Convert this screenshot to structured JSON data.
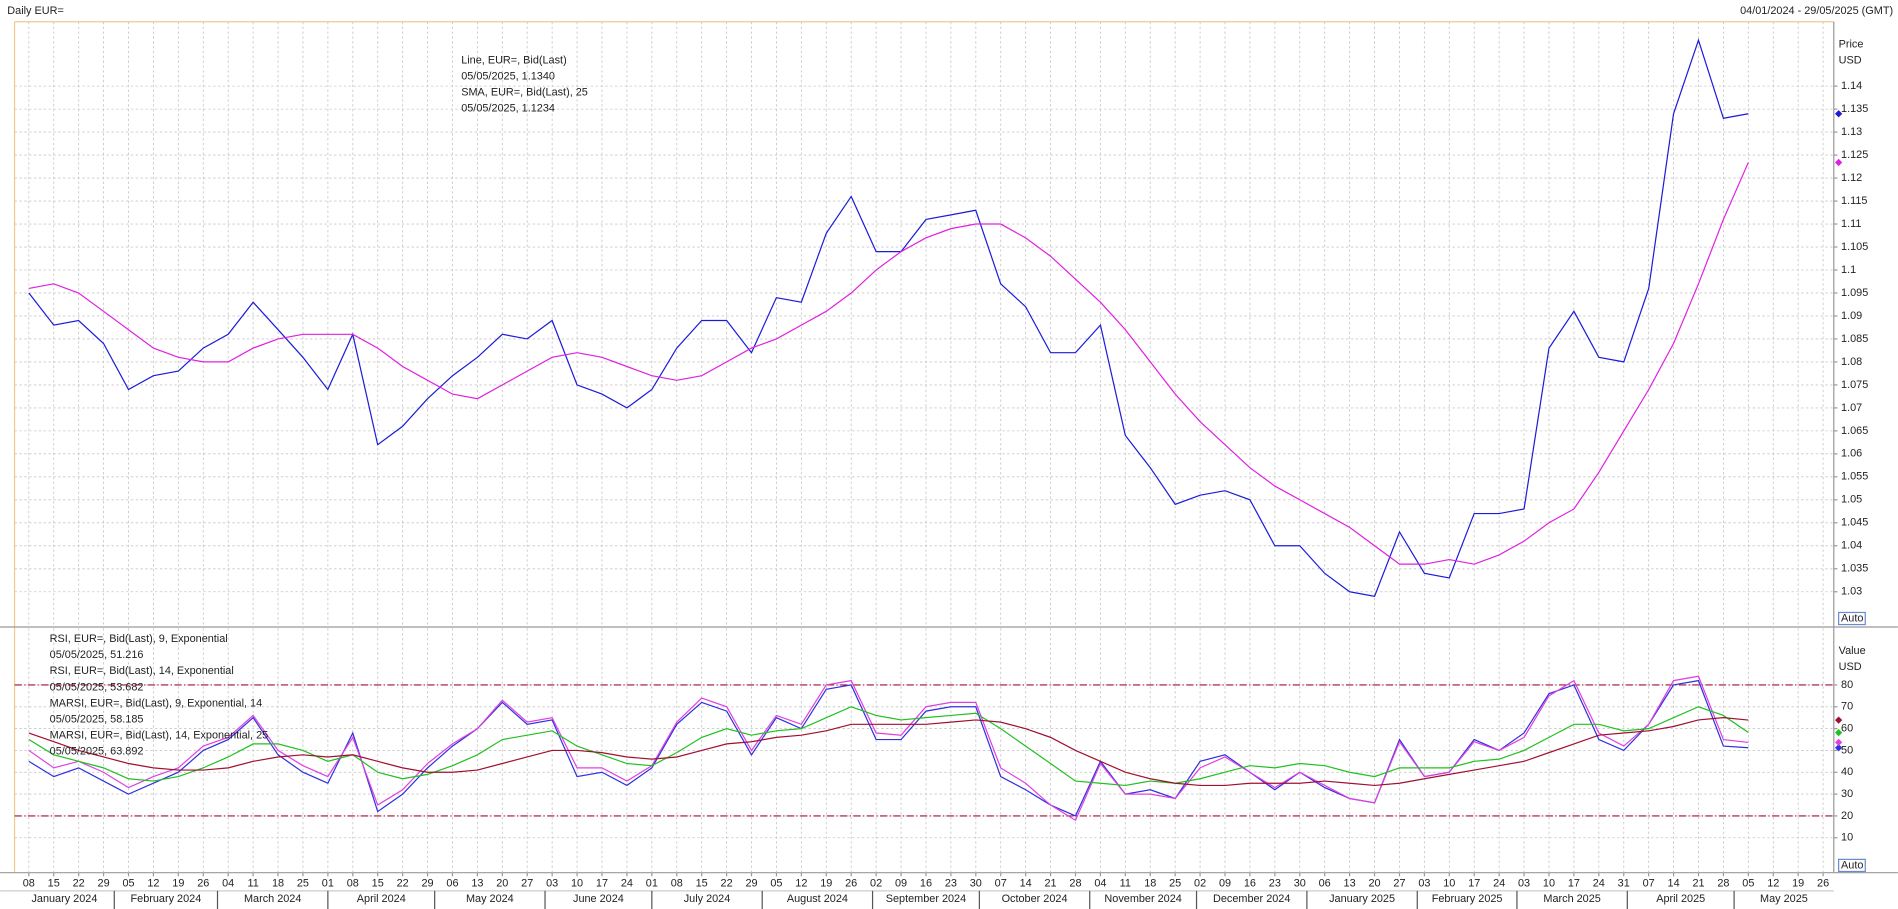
{
  "header": {
    "title": "Daily EUR=",
    "range": "04/01/2024 - 29/05/2025 (GMT)"
  },
  "chart_data": [
    {
      "type": "line",
      "y_label": "Price",
      "y_unit": "USD",
      "auto": "Auto",
      "grid": true,
      "x": [
        "2024-01-08",
        "2024-01-15",
        "2024-01-22",
        "2024-01-29",
        "2024-02-05",
        "2024-02-12",
        "2024-02-19",
        "2024-02-26",
        "2024-03-04",
        "2024-03-11",
        "2024-03-18",
        "2024-03-25",
        "2024-04-01",
        "2024-04-08",
        "2024-04-15",
        "2024-04-22",
        "2024-04-29",
        "2024-05-06",
        "2024-05-13",
        "2024-05-20",
        "2024-05-27",
        "2024-06-03",
        "2024-06-10",
        "2024-06-17",
        "2024-06-24",
        "2024-07-01",
        "2024-07-08",
        "2024-07-15",
        "2024-07-22",
        "2024-07-29",
        "2024-08-05",
        "2024-08-12",
        "2024-08-19",
        "2024-08-26",
        "2024-09-02",
        "2024-09-09",
        "2024-09-16",
        "2024-09-23",
        "2024-09-30",
        "2024-10-07",
        "2024-10-14",
        "2024-10-21",
        "2024-10-28",
        "2024-11-04",
        "2024-11-11",
        "2024-11-18",
        "2024-11-25",
        "2024-12-02",
        "2024-12-09",
        "2024-12-16",
        "2024-12-23",
        "2024-12-30",
        "2025-01-06",
        "2025-01-13",
        "2025-01-20",
        "2025-01-27",
        "2025-02-03",
        "2025-02-10",
        "2025-02-17",
        "2025-02-24",
        "2025-03-03",
        "2025-03-10",
        "2025-03-17",
        "2025-03-24",
        "2025-03-31",
        "2025-04-07",
        "2025-04-14",
        "2025-04-21",
        "2025-04-28",
        "2025-05-05"
      ],
      "xlim": [
        "2024-01-04",
        "2025-05-29"
      ],
      "ylim": [
        1.0226,
        1.154
      ],
      "yticks": [
        1.03,
        1.035,
        1.04,
        1.045,
        1.05,
        1.055,
        1.06,
        1.065,
        1.07,
        1.075,
        1.08,
        1.085,
        1.09,
        1.095,
        1.1,
        1.105,
        1.11,
        1.115,
        1.12,
        1.125,
        1.13,
        1.135,
        1.14
      ],
      "series": [
        {
          "name": "Line, EUR=, Bid(Last)",
          "last_label": "05/05/2025, 1.1340",
          "color": "#1c1cd8",
          "values": [
            1.095,
            1.088,
            1.089,
            1.084,
            1.074,
            1.077,
            1.078,
            1.083,
            1.086,
            1.093,
            1.087,
            1.081,
            1.074,
            1.086,
            1.062,
            1.066,
            1.072,
            1.077,
            1.081,
            1.086,
            1.085,
            1.089,
            1.075,
            1.073,
            1.07,
            1.074,
            1.083,
            1.089,
            1.089,
            1.082,
            1.094,
            1.093,
            1.108,
            1.116,
            1.104,
            1.104,
            1.111,
            1.112,
            1.113,
            1.097,
            1.092,
            1.082,
            1.082,
            1.088,
            1.064,
            1.057,
            1.049,
            1.051,
            1.052,
            1.05,
            1.04,
            1.04,
            1.034,
            1.03,
            1.029,
            1.043,
            1.034,
            1.033,
            1.047,
            1.047,
            1.048,
            1.083,
            1.091,
            1.081,
            1.08,
            1.096,
            1.134,
            1.15,
            1.133,
            1.134
          ]
        },
        {
          "name": "SMA, EUR=, Bid(Last),  25",
          "last_label": "05/05/2025, 1.1234",
          "color": "#e020e0",
          "values": [
            1.096,
            1.097,
            1.095,
            1.091,
            1.087,
            1.083,
            1.081,
            1.08,
            1.08,
            1.083,
            1.085,
            1.086,
            1.086,
            1.086,
            1.083,
            1.079,
            1.076,
            1.073,
            1.072,
            1.075,
            1.078,
            1.081,
            1.082,
            1.081,
            1.079,
            1.077,
            1.076,
            1.077,
            1.08,
            1.083,
            1.085,
            1.088,
            1.091,
            1.095,
            1.1,
            1.104,
            1.107,
            1.109,
            1.11,
            1.11,
            1.107,
            1.103,
            1.098,
            1.093,
            1.087,
            1.08,
            1.073,
            1.067,
            1.062,
            1.057,
            1.053,
            1.05,
            1.047,
            1.044,
            1.04,
            1.036,
            1.036,
            1.037,
            1.036,
            1.038,
            1.041,
            1.045,
            1.048,
            1.056,
            1.065,
            1.074,
            1.084,
            1.097,
            1.111,
            1.1234
          ]
        }
      ]
    },
    {
      "type": "line",
      "y_label": "Value",
      "y_unit": "USD",
      "auto": "Auto",
      "grid": true,
      "x": [
        "2024-01-08",
        "2024-01-15",
        "2024-01-22",
        "2024-01-29",
        "2024-02-05",
        "2024-02-12",
        "2024-02-19",
        "2024-02-26",
        "2024-03-04",
        "2024-03-11",
        "2024-03-18",
        "2024-03-25",
        "2024-04-01",
        "2024-04-08",
        "2024-04-15",
        "2024-04-22",
        "2024-04-29",
        "2024-05-06",
        "2024-05-13",
        "2024-05-20",
        "2024-05-27",
        "2024-06-03",
        "2024-06-10",
        "2024-06-17",
        "2024-06-24",
        "2024-07-01",
        "2024-07-08",
        "2024-07-15",
        "2024-07-22",
        "2024-07-29",
        "2024-08-05",
        "2024-08-12",
        "2024-08-19",
        "2024-08-26",
        "2024-09-02",
        "2024-09-09",
        "2024-09-16",
        "2024-09-23",
        "2024-09-30",
        "2024-10-07",
        "2024-10-14",
        "2024-10-21",
        "2024-10-28",
        "2024-11-04",
        "2024-11-11",
        "2024-11-18",
        "2024-11-25",
        "2024-12-02",
        "2024-12-09",
        "2024-12-16",
        "2024-12-23",
        "2024-12-30",
        "2025-01-06",
        "2025-01-13",
        "2025-01-20",
        "2025-01-27",
        "2025-02-03",
        "2025-02-10",
        "2025-02-17",
        "2025-02-24",
        "2025-03-03",
        "2025-03-10",
        "2025-03-17",
        "2025-03-24",
        "2025-03-31",
        "2025-04-07",
        "2025-04-14",
        "2025-04-21",
        "2025-04-28",
        "2025-05-05"
      ],
      "xlim": [
        "2024-01-04",
        "2025-05-29"
      ],
      "xticks": [
        {
          "value": "2024-01-08",
          "label": "08"
        },
        {
          "value": "2024-01-15",
          "label": "15"
        },
        {
          "value": "2024-01-22",
          "label": "22"
        },
        {
          "value": "2024-01-29",
          "label": "29"
        },
        {
          "value": "2024-02-05",
          "label": "05"
        },
        {
          "value": "2024-02-12",
          "label": "12"
        },
        {
          "value": "2024-02-19",
          "label": "19"
        },
        {
          "value": "2024-02-26",
          "label": "26"
        },
        {
          "value": "2024-03-04",
          "label": "04"
        },
        {
          "value": "2024-03-11",
          "label": "11"
        },
        {
          "value": "2024-03-18",
          "label": "18"
        },
        {
          "value": "2024-03-25",
          "label": "25"
        },
        {
          "value": "2024-04-01",
          "label": "01"
        },
        {
          "value": "2024-04-08",
          "label": "08"
        },
        {
          "value": "2024-04-15",
          "label": "15"
        },
        {
          "value": "2024-04-22",
          "label": "22"
        },
        {
          "value": "2024-04-29",
          "label": "29"
        },
        {
          "value": "2024-05-06",
          "label": "06"
        },
        {
          "value": "2024-05-13",
          "label": "13"
        },
        {
          "value": "2024-05-20",
          "label": "20"
        },
        {
          "value": "2024-05-27",
          "label": "27"
        },
        {
          "value": "2024-06-03",
          "label": "03"
        },
        {
          "value": "2024-06-10",
          "label": "10"
        },
        {
          "value": "2024-06-17",
          "label": "17"
        },
        {
          "value": "2024-06-24",
          "label": "24"
        },
        {
          "value": "2024-07-01",
          "label": "01"
        },
        {
          "value": "2024-07-08",
          "label": "08"
        },
        {
          "value": "2024-07-15",
          "label": "15"
        },
        {
          "value": "2024-07-22",
          "label": "22"
        },
        {
          "value": "2024-07-29",
          "label": "29"
        },
        {
          "value": "2024-08-05",
          "label": "05"
        },
        {
          "value": "2024-08-12",
          "label": "12"
        },
        {
          "value": "2024-08-19",
          "label": "19"
        },
        {
          "value": "2024-08-26",
          "label": "26"
        },
        {
          "value": "2024-09-02",
          "label": "02"
        },
        {
          "value": "2024-09-09",
          "label": "09"
        },
        {
          "value": "2024-09-16",
          "label": "16"
        },
        {
          "value": "2024-09-23",
          "label": "23"
        },
        {
          "value": "2024-09-30",
          "label": "30"
        },
        {
          "value": "2024-10-07",
          "label": "07"
        },
        {
          "value": "2024-10-14",
          "label": "14"
        },
        {
          "value": "2024-10-21",
          "label": "21"
        },
        {
          "value": "2024-10-28",
          "label": "28"
        },
        {
          "value": "2024-11-04",
          "label": "04"
        },
        {
          "value": "2024-11-11",
          "label": "11"
        },
        {
          "value": "2024-11-18",
          "label": "18"
        },
        {
          "value": "2024-11-25",
          "label": "25"
        },
        {
          "value": "2024-12-02",
          "label": "02"
        },
        {
          "value": "2024-12-09",
          "label": "09"
        },
        {
          "value": "2024-12-16",
          "label": "16"
        },
        {
          "value": "2024-12-23",
          "label": "23"
        },
        {
          "value": "2024-12-30",
          "label": "30"
        },
        {
          "value": "2025-01-06",
          "label": "06"
        },
        {
          "value": "2025-01-13",
          "label": "13"
        },
        {
          "value": "2025-01-20",
          "label": "20"
        },
        {
          "value": "2025-01-27",
          "label": "27"
        },
        {
          "value": "2025-02-03",
          "label": "03"
        },
        {
          "value": "2025-02-10",
          "label": "10"
        },
        {
          "value": "2025-02-17",
          "label": "17"
        },
        {
          "value": "2025-02-24",
          "label": "24"
        },
        {
          "value": "2025-03-03",
          "label": "03"
        },
        {
          "value": "2025-03-10",
          "label": "10"
        },
        {
          "value": "2025-03-17",
          "label": "17"
        },
        {
          "value": "2025-03-24",
          "label": "24"
        },
        {
          "value": "2025-03-31",
          "label": "31"
        },
        {
          "value": "2025-04-07",
          "label": "07"
        },
        {
          "value": "2025-04-14",
          "label": "14"
        },
        {
          "value": "2025-04-21",
          "label": "21"
        },
        {
          "value": "2025-04-28",
          "label": "28"
        },
        {
          "value": "2025-05-05",
          "label": "05"
        },
        {
          "value": "2025-05-12",
          "label": "12"
        },
        {
          "value": "2025-05-19",
          "label": "19"
        },
        {
          "value": "2025-05-26",
          "label": "26"
        }
      ],
      "months": [
        {
          "value": "2024-01",
          "label": "January 2024"
        },
        {
          "value": "2024-02",
          "label": "February 2024"
        },
        {
          "value": "2024-03",
          "label": "March 2024"
        },
        {
          "value": "2024-04",
          "label": "April 2024"
        },
        {
          "value": "2024-05",
          "label": "May 2024"
        },
        {
          "value": "2024-06",
          "label": "June 2024"
        },
        {
          "value": "2024-07",
          "label": "July 2024"
        },
        {
          "value": "2024-08",
          "label": "August 2024"
        },
        {
          "value": "2024-09",
          "label": "September 2024"
        },
        {
          "value": "2024-10",
          "label": "October 2024"
        },
        {
          "value": "2024-11",
          "label": "November 2024"
        },
        {
          "value": "2024-12",
          "label": "December 2024"
        },
        {
          "value": "2025-01",
          "label": "January 2025"
        },
        {
          "value": "2025-02",
          "label": "February 2025"
        },
        {
          "value": "2025-03",
          "label": "March 2025"
        },
        {
          "value": "2025-04",
          "label": "April 2025"
        },
        {
          "value": "2025-05",
          "label": "May 2025"
        }
      ],
      "ylim": [
        -6,
        106
      ],
      "yticks": [
        10,
        20,
        30,
        40,
        50,
        60,
        70,
        80
      ],
      "reference_lines": [
        20,
        80
      ],
      "reference_color": "#a01030",
      "series": [
        {
          "name": "RSI, EUR=, Bid(Last),  9, Exponential",
          "last_label": "05/05/2025, 51.216",
          "color": "#3030e0",
          "values": [
            45,
            38,
            42,
            36,
            30,
            35,
            40,
            50,
            55,
            65,
            48,
            40,
            35,
            58,
            22,
            30,
            42,
            52,
            60,
            72,
            62,
            64,
            38,
            40,
            34,
            42,
            62,
            72,
            68,
            48,
            65,
            60,
            78,
            80,
            55,
            55,
            68,
            70,
            70,
            38,
            32,
            25,
            20,
            45,
            30,
            32,
            28,
            45,
            48,
            40,
            32,
            40,
            33,
            28,
            26,
            55,
            38,
            40,
            55,
            50,
            58,
            76,
            80,
            55,
            50,
            62,
            80,
            82,
            52,
            51.216
          ]
        },
        {
          "name": "RSI, EUR=, Bid(Last),  14, Exponential",
          "last_label": "05/05/2025, 53.682",
          "color": "#e040e0",
          "values": [
            50,
            42,
            45,
            40,
            33,
            38,
            42,
            52,
            56,
            66,
            50,
            43,
            38,
            56,
            25,
            32,
            44,
            53,
            60,
            73,
            63,
            65,
            42,
            42,
            36,
            43,
            63,
            74,
            70,
            50,
            66,
            62,
            80,
            82,
            58,
            57,
            70,
            72,
            72,
            42,
            35,
            25,
            18,
            44,
            30,
            30,
            28,
            42,
            47,
            40,
            33,
            40,
            34,
            28,
            26,
            54,
            38,
            40,
            54,
            50,
            56,
            75,
            82,
            58,
            52,
            62,
            82,
            84,
            55,
            53.682
          ]
        },
        {
          "name": "MARSI, EUR=, Bid(Last),  9, Exponential, 14",
          "last_label": "05/05/2025, 58.185",
          "color": "#20c020",
          "values": [
            55,
            48,
            45,
            42,
            37,
            36,
            38,
            42,
            47,
            53,
            53,
            50,
            45,
            48,
            40,
            37,
            39,
            43,
            48,
            55,
            57,
            59,
            52,
            48,
            44,
            43,
            49,
            56,
            60,
            57,
            59,
            60,
            65,
            70,
            66,
            64,
            65,
            66,
            67,
            60,
            52,
            44,
            36,
            35,
            34,
            36,
            35,
            37,
            40,
            43,
            42,
            44,
            43,
            40,
            38,
            42,
            42,
            42,
            45,
            46,
            50,
            56,
            62,
            62,
            59,
            60,
            65,
            70,
            66,
            58.185
          ]
        },
        {
          "name": "MARSI, EUR=, Bid(Last),  14, Exponential, 25",
          "last_label": "05/05/2025, 63.892",
          "color": "#a01030",
          "values": [
            58,
            54,
            50,
            47,
            44,
            42,
            41,
            41,
            42,
            45,
            47,
            48,
            47,
            48,
            45,
            42,
            40,
            40,
            41,
            44,
            47,
            50,
            50,
            49,
            47,
            46,
            47,
            50,
            53,
            54,
            56,
            57,
            59,
            62,
            62,
            62,
            62,
            63,
            64,
            63,
            60,
            56,
            50,
            45,
            40,
            37,
            35,
            34,
            34,
            35,
            35,
            35,
            36,
            35,
            34,
            35,
            37,
            39,
            41,
            43,
            45,
            49,
            53,
            57,
            58,
            59,
            61,
            64,
            65,
            63.892
          ]
        }
      ]
    }
  ]
}
